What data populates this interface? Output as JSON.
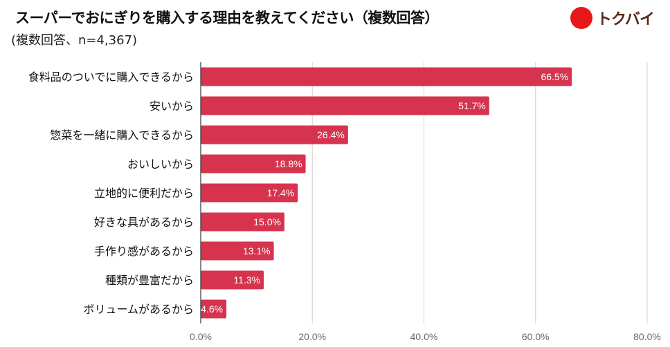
{
  "brand": {
    "logo_text": "トクバイ",
    "color": "#e8171a"
  },
  "chart_data": {
    "type": "bar",
    "orientation": "horizontal",
    "title": "スーパーでおにぎりを購入する理由を教えてください（複数回答）",
    "subtitle": "(複数回答、n=4,367)",
    "categories": [
      "食料品のついでに購入できるから",
      "安いから",
      "惣菜を一緒に購入できるから",
      "おいしいから",
      "立地的に便利だから",
      "好きな具があるから",
      "手作り感があるから",
      "種類が豊富だから",
      "ボリュームがあるから"
    ],
    "values": [
      66.5,
      51.7,
      26.4,
      18.8,
      17.4,
      15.0,
      13.1,
      11.3,
      4.6
    ],
    "data_labels": [
      "66.5%",
      "51.7%",
      "26.4%",
      "18.8%",
      "17.4%",
      "15.0%",
      "13.1%",
      "11.3%",
      "4.6%"
    ],
    "xlim": [
      0,
      80
    ],
    "xticks": [
      0,
      20,
      40,
      60,
      80
    ],
    "xtick_labels": [
      "0.0%",
      "20.0%",
      "40.0%",
      "60.0%",
      "80.0%"
    ],
    "grid": true,
    "bar_color": "#d6344e"
  }
}
